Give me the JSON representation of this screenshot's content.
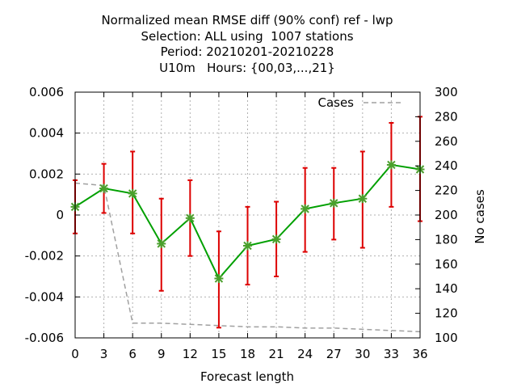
{
  "chart_data": {
    "type": "line",
    "title_lines": [
      "Normalized mean RMSE diff (90% conf) ref - lwp",
      "Selection: ALL using  1007 stations",
      "Period: 20210201-20210228",
      "U10m   Hours: {00,03,...,21}"
    ],
    "xlabel": "Forecast length",
    "ylabel_right": "No cases",
    "x": [
      0,
      3,
      6,
      9,
      12,
      15,
      18,
      21,
      24,
      27,
      30,
      33,
      36
    ],
    "x_ticks": [
      "0",
      "3",
      "6",
      "9",
      "12",
      "15",
      "18",
      "21",
      "24",
      "27",
      "30",
      "33",
      "36"
    ],
    "xlim": [
      0,
      36
    ],
    "ylim": [
      -0.006,
      0.006
    ],
    "y_ticks": [
      "-0.006",
      "-0.004",
      "-0.002",
      "0",
      "0.002",
      "0.004",
      "0.006"
    ],
    "y2lim": [
      100,
      300
    ],
    "y2_ticks": [
      "100",
      "120",
      "140",
      "160",
      "180",
      "200",
      "220",
      "240",
      "260",
      "280",
      "300"
    ],
    "grid": true,
    "series": [
      {
        "values": [
          0.0004,
          0.0013,
          0.00105,
          -0.0014,
          -0.00015,
          -0.0031,
          -0.0015,
          -0.00118,
          0.0003,
          0.00058,
          0.0008,
          0.00245,
          0.00223
        ],
        "err_low": [
          -0.0009,
          0.0001,
          -0.0009,
          -0.0037,
          -0.002,
          -0.0055,
          -0.0034,
          -0.003,
          -0.0018,
          -0.0012,
          -0.0016,
          0.0004,
          -0.0003
        ],
        "err_high": [
          0.0017,
          0.0025,
          0.0031,
          0.0008,
          0.0017,
          -0.0008,
          0.0004,
          0.00065,
          0.0023,
          0.0023,
          0.0031,
          0.0045,
          0.0048
        ],
        "color": "#00a000",
        "marker_color": "#4aa02c",
        "error_color": "#dd0000"
      },
      {
        "name": "Cases",
        "axis": "right",
        "values": [
          226,
          224,
          112,
          112,
          111,
          110,
          109,
          109,
          108,
          108,
          107,
          106,
          105
        ],
        "color": "#a0a0a0",
        "dash": true
      }
    ],
    "legend": {
      "label": "Cases",
      "placement": "top-right"
    }
  }
}
